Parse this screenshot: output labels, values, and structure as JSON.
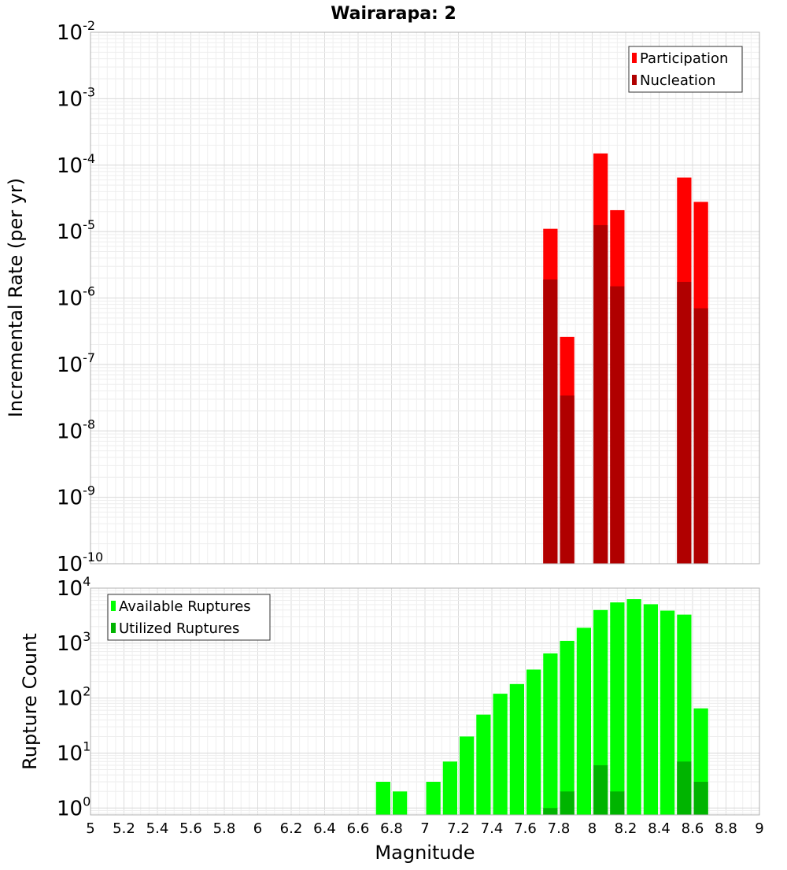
{
  "page": {
    "title": "Wairarapa: 2"
  },
  "chart_data": [
    {
      "id": "rate-panel",
      "type": "bar",
      "ylabel": "Incremental Rate (per yr)",
      "xlabel": "",
      "xlim": [
        5,
        9
      ],
      "ylim": [
        1e-10,
        0.01
      ],
      "yscale": "log",
      "grid": true,
      "bar_width": 0.1,
      "legend_position": "top-right",
      "y_ticks": [
        {
          "base": "10",
          "exp": "-10",
          "value": 1e-10
        },
        {
          "base": "10",
          "exp": "-9",
          "value": 1e-09
        },
        {
          "base": "10",
          "exp": "-8",
          "value": 1e-08
        },
        {
          "base": "10",
          "exp": "-7",
          "value": 1e-07
        },
        {
          "base": "10",
          "exp": "-6",
          "value": 1e-06
        },
        {
          "base": "10",
          "exp": "-5",
          "value": 1e-05
        },
        {
          "base": "10",
          "exp": "-4",
          "value": 0.0001
        },
        {
          "base": "10",
          "exp": "-3",
          "value": 0.001
        },
        {
          "base": "10",
          "exp": "-2",
          "value": 0.01
        }
      ],
      "series": [
        {
          "name": "Participation",
          "color": "#ff0000",
          "points": [
            {
              "x": 7.75,
              "y": 1.1e-05
            },
            {
              "x": 7.85,
              "y": 2.6e-07
            },
            {
              "x": 8.05,
              "y": 0.00015
            },
            {
              "x": 8.15,
              "y": 2.1e-05
            },
            {
              "x": 8.55,
              "y": 6.5e-05
            },
            {
              "x": 8.65,
              "y": 2.8e-05
            }
          ]
        },
        {
          "name": "Nucleation",
          "color": "#b00000",
          "points": [
            {
              "x": 7.75,
              "y": 1.9e-06
            },
            {
              "x": 7.85,
              "y": 3.4e-08
            },
            {
              "x": 8.05,
              "y": 1.25e-05
            },
            {
              "x": 8.15,
              "y": 1.5e-06
            },
            {
              "x": 8.55,
              "y": 1.75e-06
            },
            {
              "x": 8.65,
              "y": 7e-07
            }
          ]
        }
      ]
    },
    {
      "id": "count-panel",
      "type": "bar",
      "ylabel": "Rupture Count",
      "xlabel": "Magnitude",
      "xlim": [
        5,
        9
      ],
      "ylim": [
        0.75,
        10000
      ],
      "yscale": "log",
      "grid": true,
      "bar_width": 0.1,
      "legend_position": "top-left",
      "x_ticks": [
        "5",
        "5.2",
        "5.4",
        "5.6",
        "5.8",
        "6",
        "6.2",
        "6.4",
        "6.6",
        "6.8",
        "7",
        "7.2",
        "7.4",
        "7.6",
        "7.8",
        "8",
        "8.2",
        "8.4",
        "8.6",
        "8.8",
        "9"
      ],
      "y_ticks": [
        {
          "base": "10",
          "exp": "0",
          "value": 1
        },
        {
          "base": "10",
          "exp": "1",
          "value": 10
        },
        {
          "base": "10",
          "exp": "2",
          "value": 100
        },
        {
          "base": "10",
          "exp": "3",
          "value": 1000
        },
        {
          "base": "10",
          "exp": "4",
          "value": 10000
        }
      ],
      "series": [
        {
          "name": "Available Ruptures",
          "color": "#00ff00",
          "points": [
            {
              "x": 6.75,
              "y": 3
            },
            {
              "x": 6.85,
              "y": 2
            },
            {
              "x": 7.05,
              "y": 3
            },
            {
              "x": 7.15,
              "y": 7
            },
            {
              "x": 7.25,
              "y": 20
            },
            {
              "x": 7.35,
              "y": 50
            },
            {
              "x": 7.45,
              "y": 120
            },
            {
              "x": 7.55,
              "y": 180
            },
            {
              "x": 7.65,
              "y": 330
            },
            {
              "x": 7.75,
              "y": 650
            },
            {
              "x": 7.85,
              "y": 1100
            },
            {
              "x": 7.95,
              "y": 1900
            },
            {
              "x": 8.05,
              "y": 4000
            },
            {
              "x": 8.15,
              "y": 5500
            },
            {
              "x": 8.25,
              "y": 6300
            },
            {
              "x": 8.35,
              "y": 5100
            },
            {
              "x": 8.45,
              "y": 3900
            },
            {
              "x": 8.55,
              "y": 3300
            },
            {
              "x": 8.65,
              "y": 65
            }
          ]
        },
        {
          "name": "Utilized Ruptures",
          "color": "#00b400",
          "points": [
            {
              "x": 7.75,
              "y": 1
            },
            {
              "x": 7.85,
              "y": 2
            },
            {
              "x": 8.05,
              "y": 6
            },
            {
              "x": 8.15,
              "y": 2
            },
            {
              "x": 8.55,
              "y": 7
            },
            {
              "x": 8.65,
              "y": 3
            }
          ]
        }
      ]
    }
  ]
}
